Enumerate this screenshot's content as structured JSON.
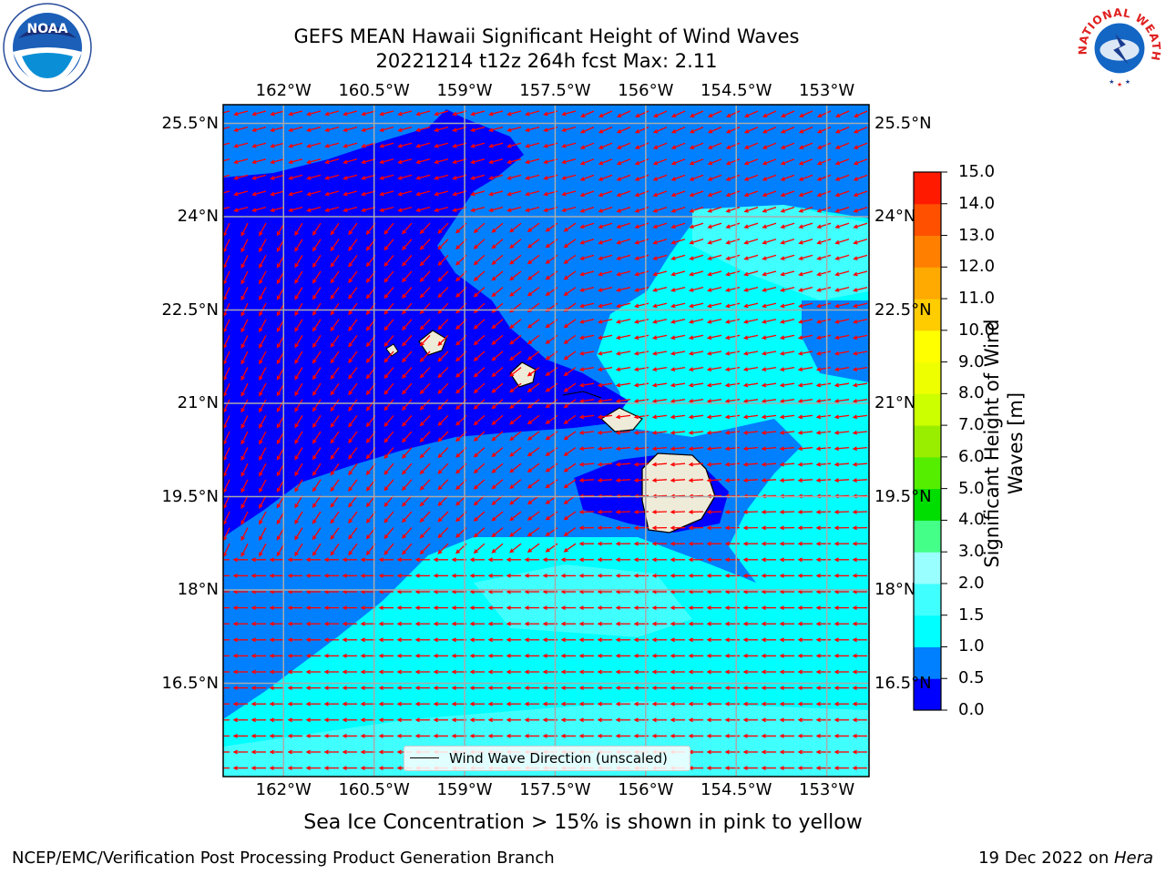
{
  "title": {
    "line1": "GEFS MEAN Hawaii Significant Height of Wind Waves",
    "line2": "20221214 t12z 264h fcst   Max: 2.11"
  },
  "axes": {
    "lon_labels": [
      "162°W",
      "160.5°W",
      "159°W",
      "157.5°W",
      "156°W",
      "154.5°W",
      "153°W"
    ],
    "lon_values": [
      -162,
      -160.5,
      -159,
      -157.5,
      -156,
      -154.5,
      -153
    ],
    "lat_labels": [
      "25.5°N",
      "24°N",
      "22.5°N",
      "21°N",
      "19.5°N",
      "18°N",
      "16.5°N"
    ],
    "lat_values": [
      25.5,
      24,
      22.5,
      21,
      19.5,
      18,
      16.5
    ],
    "lon_range": [
      -163,
      -152.3
    ],
    "lat_range": [
      15.0,
      25.8
    ]
  },
  "colorbar": {
    "title": "Significant Height of Wind Waves [m]",
    "tick_labels": [
      "0.0",
      "0.5",
      "1.0",
      "1.5",
      "2.0",
      "3.0",
      "4.0",
      "5.0",
      "6.0",
      "7.0",
      "8.0",
      "9.0",
      "10.0",
      "11.0",
      "12.0",
      "13.0",
      "14.0",
      "15.0"
    ],
    "levels": [
      0.0,
      0.5,
      1.0,
      1.5,
      2.0,
      3.0,
      4.0,
      5.0,
      6.0,
      7.0,
      8.0,
      9.0,
      10.0,
      11.0,
      12.0,
      13.0,
      14.0,
      15.0
    ],
    "colors": [
      "#0000ff",
      "#0080ff",
      "#00ffff",
      "#40ffff",
      "#99ffff",
      "#44ff88",
      "#00dd00",
      "#55ee00",
      "#99ee00",
      "#ccff00",
      "#eeff00",
      "#ffff00",
      "#ffcc00",
      "#ffaa00",
      "#ff8000",
      "#ff5000",
      "#ff1a00"
    ]
  },
  "legend": {
    "label": "Wind Wave Direction (unscaled)"
  },
  "note": "Sea Ice Concentration > 15% is shown in pink to yellow",
  "footer": {
    "left": "NCEP/EMC/Verification Post Processing Product Generation Branch",
    "right_prefix": "19 Dec 2022 on ",
    "right_machine": "Hera"
  },
  "logos": {
    "noaa_text": "NOAA",
    "nws_text": "NATIONAL WEATHER SERVICE"
  },
  "colors": {
    "arrow": "#ff0000",
    "land": "#eeebd8",
    "grid": "#aaaaaa"
  }
}
